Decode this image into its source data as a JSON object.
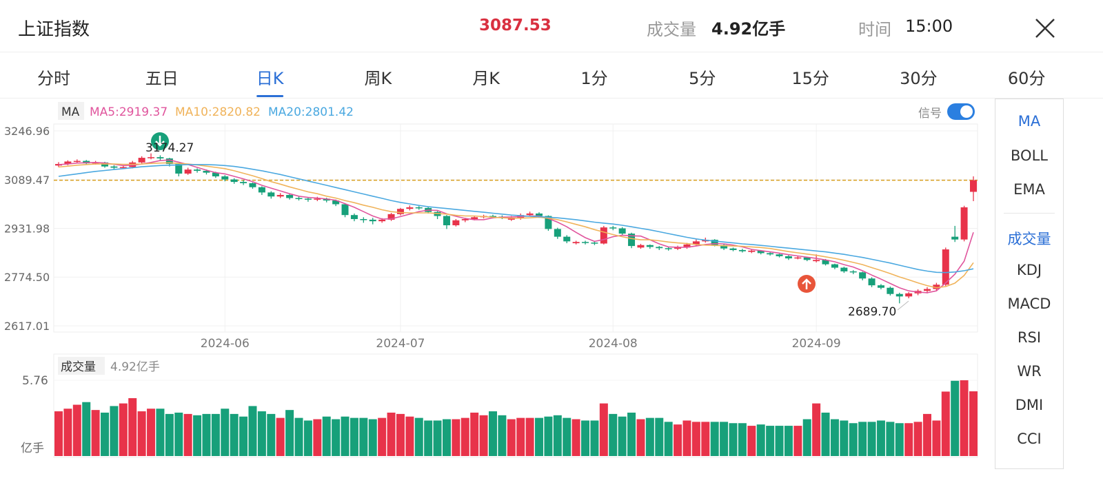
{
  "header": {
    "title": "上证指数",
    "price": "3087.53",
    "volume_label": "成交量",
    "volume_value": "4.92亿手",
    "time_label": "时间",
    "time_value": "15:00"
  },
  "tabs": [
    "分时",
    "五日",
    "日K",
    "周K",
    "月K",
    "1分",
    "5分",
    "15分",
    "30分",
    "60分"
  ],
  "side_menu": [
    "MA",
    "BOLL",
    "EMA",
    "成交量",
    "KDJ",
    "MACD",
    "RSI",
    "WR",
    "DMI",
    "CCI"
  ],
  "chart_data": {
    "type": "candlestick",
    "ma_label": "MA",
    "signal_label": "信号",
    "ylim": [
      2617.01,
      3246.96
    ],
    "yticks": [
      2617.01,
      {
        "value": 2774.5,
        "label": "2774.50"
      },
      2931.98,
      3089.47,
      3246.96
    ],
    "reference_line": 3087.53,
    "annotations": [
      "3174.27",
      "2689.70"
    ],
    "categories": [
      null,
      null,
      null,
      null,
      null,
      null,
      null,
      null,
      null,
      null,
      null,
      null,
      null,
      null,
      null,
      null,
      null,
      null,
      "2024-06",
      null,
      null,
      null,
      null,
      null,
      null,
      null,
      null,
      null,
      null,
      null,
      null,
      null,
      null,
      null,
      null,
      null,
      null,
      "2024-07",
      null,
      null,
      null,
      null,
      null,
      null,
      null,
      null,
      null,
      null,
      null,
      null,
      null,
      null,
      null,
      null,
      null,
      null,
      null,
      null,
      null,
      null,
      "2024-08",
      null,
      null,
      null,
      null,
      null,
      null,
      null,
      null,
      null,
      null,
      null,
      null,
      null,
      null,
      null,
      null,
      null,
      null,
      null,
      null,
      null,
      "2024-09",
      null,
      null,
      null,
      null,
      null,
      null,
      null,
      null,
      null,
      null,
      null,
      null,
      null,
      null,
      null,
      null,
      null
    ],
    "ohlc": [
      [
        3135,
        3146,
        3130,
        3140
      ],
      [
        3140,
        3152,
        3136,
        3148
      ],
      [
        3148,
        3155,
        3142,
        3150
      ],
      [
        3150,
        3153,
        3138,
        3142
      ],
      [
        3142,
        3150,
        3138,
        3145
      ],
      [
        3145,
        3147,
        3128,
        3132
      ],
      [
        3132,
        3136,
        3122,
        3128
      ],
      [
        3128,
        3135,
        3124,
        3130
      ],
      [
        3130,
        3150,
        3126,
        3145
      ],
      [
        3145,
        3165,
        3142,
        3160
      ],
      [
        3160,
        3174.27,
        3155,
        3162
      ],
      [
        3162,
        3168,
        3152,
        3158
      ],
      [
        3158,
        3160,
        3132,
        3140
      ],
      [
        3140,
        3142,
        3100,
        3109
      ],
      [
        3109,
        3128,
        3105,
        3122
      ],
      [
        3122,
        3126,
        3112,
        3118
      ],
      [
        3118,
        3122,
        3106,
        3112
      ],
      [
        3112,
        3115,
        3095,
        3100
      ],
      [
        3100,
        3104,
        3084,
        3090
      ],
      [
        3090,
        3094,
        3076,
        3082
      ],
      [
        3082,
        3088,
        3072,
        3078
      ],
      [
        3078,
        3080,
        3060,
        3065
      ],
      [
        3065,
        3068,
        3040,
        3048
      ],
      [
        3048,
        3052,
        3028,
        3035
      ],
      [
        3035,
        3046,
        3030,
        3040
      ],
      [
        3040,
        3044,
        3025,
        3030
      ],
      [
        3030,
        3036,
        3022,
        3028
      ],
      [
        3028,
        3032,
        3018,
        3025
      ],
      [
        3025,
        3034,
        3020,
        3028
      ],
      [
        3028,
        3031,
        3016,
        3022
      ],
      [
        3022,
        3025,
        3004,
        3010
      ],
      [
        3010,
        3012,
        2968,
        2975
      ],
      [
        2975,
        2980,
        2955,
        2962
      ],
      [
        2962,
        2968,
        2950,
        2960
      ],
      [
        2960,
        2966,
        2945,
        2955
      ],
      [
        2955,
        2965,
        2950,
        2960
      ],
      [
        2960,
        2982,
        2956,
        2978
      ],
      [
        2978,
        2998,
        2974,
        2995
      ],
      [
        2995,
        3006,
        2990,
        3000
      ],
      [
        3000,
        3004,
        2992,
        2998
      ],
      [
        2998,
        3001,
        2980,
        2985
      ],
      [
        2985,
        2988,
        2962,
        2972
      ],
      [
        2972,
        2975,
        2930,
        2942
      ],
      [
        2942,
        2962,
        2938,
        2958
      ],
      [
        2958,
        2966,
        2952,
        2962
      ],
      [
        2962,
        2972,
        2958,
        2968
      ],
      [
        2968,
        2976,
        2964,
        2972
      ],
      [
        2972,
        2976,
        2964,
        2970
      ],
      [
        2970,
        2974,
        2962,
        2968
      ],
      [
        2960,
        2972,
        2956,
        2965
      ],
      [
        2965,
        2980,
        2960,
        2975
      ],
      [
        2975,
        2986,
        2970,
        2980
      ],
      [
        2980,
        2984,
        2966,
        2972
      ],
      [
        2972,
        2974,
        2924,
        2930
      ],
      [
        2930,
        2934,
        2898,
        2905
      ],
      [
        2905,
        2910,
        2884,
        2890
      ],
      [
        2884,
        2892,
        2880,
        2888
      ],
      [
        2888,
        2892,
        2880,
        2886
      ],
      [
        2886,
        2890,
        2878,
        2883
      ],
      [
        2883,
        2940,
        2880,
        2935
      ],
      [
        2935,
        2940,
        2926,
        2932
      ],
      [
        2932,
        2936,
        2910,
        2915
      ],
      [
        2915,
        2918,
        2868,
        2875
      ],
      [
        2870,
        2882,
        2866,
        2878
      ],
      [
        2878,
        2880,
        2866,
        2872
      ],
      [
        2872,
        2875,
        2862,
        2868
      ],
      [
        2868,
        2872,
        2860,
        2866
      ],
      [
        2866,
        2876,
        2862,
        2870
      ],
      [
        2870,
        2885,
        2866,
        2880
      ],
      [
        2880,
        2896,
        2876,
        2890
      ],
      [
        2890,
        2902,
        2886,
        2895
      ],
      [
        2895,
        2897,
        2874,
        2878
      ],
      [
        2878,
        2881,
        2862,
        2867
      ],
      [
        2867,
        2870,
        2858,
        2862
      ],
      [
        2862,
        2866,
        2854,
        2858
      ],
      [
        2856,
        2864,
        2852,
        2860
      ],
      [
        2860,
        2862,
        2848,
        2852
      ],
      [
        2852,
        2856,
        2844,
        2848
      ],
      [
        2848,
        2850,
        2838,
        2842
      ],
      [
        2842,
        2845,
        2830,
        2835
      ],
      [
        2835,
        2842,
        2832,
        2838
      ],
      [
        2838,
        2840,
        2826,
        2830
      ],
      [
        2826,
        2848,
        2822,
        2830
      ],
      [
        2830,
        2833,
        2812,
        2816
      ],
      [
        2816,
        2818,
        2800,
        2805
      ],
      [
        2805,
        2808,
        2788,
        2793
      ],
      [
        2793,
        2797,
        2784,
        2790
      ],
      [
        2790,
        2792,
        2764,
        2770
      ],
      [
        2770,
        2774,
        2742,
        2748
      ],
      [
        2748,
        2752,
        2735,
        2740
      ],
      [
        2740,
        2744,
        2715,
        2720
      ],
      [
        2720,
        2724,
        2689.7,
        2712
      ],
      [
        2712,
        2726,
        2706,
        2722
      ],
      [
        2722,
        2735,
        2716,
        2730
      ],
      [
        2730,
        2742,
        2722,
        2736
      ],
      [
        2736,
        2756,
        2730,
        2750
      ],
      [
        2750,
        2870,
        2746,
        2864
      ],
      [
        2905,
        2940,
        2888,
        2896
      ],
      [
        2896,
        3005,
        2890,
        3000
      ],
      [
        3050,
        3100,
        3020,
        3087.53
      ]
    ],
    "series": [
      {
        "name": "MA5:2919.37",
        "color": "#e0559d",
        "values": [
          3138,
          3140,
          3143,
          3144,
          3145,
          3143,
          3139,
          3135,
          3136,
          3140,
          3145,
          3151,
          3153,
          3146,
          3138,
          3129,
          3120,
          3112,
          3108,
          3100,
          3092,
          3083,
          3071,
          3062,
          3053,
          3044,
          3036,
          3032,
          3030,
          3027,
          3023,
          3012,
          3000,
          2986,
          2972,
          2962,
          2963,
          2970,
          2978,
          2986,
          2991,
          2990,
          2979,
          2971,
          2964,
          2960,
          2960,
          2966,
          2968,
          2969,
          2970,
          2972,
          2972,
          2964,
          2952,
          2937,
          2919,
          2902,
          2890,
          2896,
          2905,
          2910,
          2908,
          2907,
          2895,
          2882,
          2872,
          2871,
          2871,
          2875,
          2880,
          2883,
          2882,
          2878,
          2872,
          2864,
          2860,
          2856,
          2852,
          2847,
          2843,
          2839,
          2835,
          2830,
          2824,
          2815,
          2807,
          2795,
          2781,
          2768,
          2754,
          2740,
          2730,
          2726,
          2724,
          2730,
          2756,
          2784,
          2826,
          2919.37
        ]
      },
      {
        "name": "MA10:2820.82",
        "color": "#f0b35a",
        "values": [
          3130,
          3133,
          3136,
          3138,
          3140,
          3140,
          3140,
          3139,
          3139,
          3140,
          3142,
          3143,
          3144,
          3142,
          3140,
          3137,
          3133,
          3129,
          3125,
          3118,
          3110,
          3102,
          3093,
          3083,
          3075,
          3066,
          3058,
          3050,
          3044,
          3036,
          3030,
          3022,
          3015,
          3007,
          3000,
          2992,
          2986,
          2983,
          2982,
          2982,
          2982,
          2980,
          2978,
          2974,
          2972,
          2972,
          2970,
          2968,
          2966,
          2965,
          2965,
          2966,
          2968,
          2965,
          2960,
          2953,
          2945,
          2937,
          2928,
          2920,
          2912,
          2905,
          2899,
          2895,
          2895,
          2892,
          2888,
          2885,
          2883,
          2880,
          2878,
          2877,
          2876,
          2875,
          2874,
          2872,
          2870,
          2867,
          2862,
          2857,
          2853,
          2849,
          2845,
          2840,
          2835,
          2829,
          2822,
          2815,
          2805,
          2796,
          2786,
          2775,
          2766,
          2756,
          2747,
          2740,
          2744,
          2755,
          2780,
          2820.82
        ]
      },
      {
        "name": "MA20:2801.42",
        "color": "#4aa8e0",
        "values": [
          3100,
          3104,
          3108,
          3112,
          3116,
          3119,
          3122,
          3125,
          3128,
          3131,
          3133,
          3135,
          3136,
          3137,
          3138,
          3138,
          3138,
          3137,
          3135,
          3132,
          3128,
          3123,
          3118,
          3112,
          3106,
          3099,
          3092,
          3085,
          3078,
          3071,
          3064,
          3057,
          3050,
          3043,
          3036,
          3029,
          3022,
          3016,
          3011,
          3006,
          3002,
          2999,
          2996,
          2993,
          2990,
          2987,
          2984,
          2981,
          2978,
          2975,
          2973,
          2971,
          2970,
          2968,
          2966,
          2963,
          2960,
          2956,
          2952,
          2949,
          2946,
          2942,
          2937,
          2932,
          2927,
          2921,
          2915,
          2909,
          2903,
          2898,
          2894,
          2891,
          2888,
          2885,
          2882,
          2880,
          2877,
          2874,
          2871,
          2868,
          2865,
          2862,
          2859,
          2856,
          2852,
          2848,
          2843,
          2838,
          2832,
          2826,
          2820,
          2813,
          2806,
          2799,
          2794,
          2790,
          2789,
          2791,
          2795,
          2801.42
        ]
      }
    ],
    "up_color": "#e8334a",
    "down_color": "#17a07a",
    "volume": {
      "title": "成交量",
      "value_text": "4.92亿手",
      "unit": "亿手",
      "ylim": [
        0,
        5.76
      ],
      "yticks": [
        5.76
      ],
      "values": [
        3.4,
        3.6,
        3.9,
        4.1,
        3.5,
        3.3,
        3.8,
        4.0,
        4.4,
        3.4,
        3.6,
        3.6,
        3.2,
        3.3,
        3.2,
        3.1,
        3.2,
        3.2,
        3.6,
        3.2,
        3.0,
        3.8,
        3.4,
        3.2,
        2.9,
        3.5,
        2.9,
        2.7,
        2.8,
        3.0,
        2.8,
        3.0,
        2.9,
        2.9,
        2.8,
        2.9,
        3.3,
        3.2,
        3.0,
        2.9,
        2.7,
        2.7,
        2.8,
        2.8,
        2.9,
        3.3,
        3.1,
        3.4,
        3.1,
        2.8,
        2.9,
        2.9,
        2.9,
        3.0,
        3.1,
        2.9,
        2.8,
        2.7,
        2.7,
        4.0,
        3.2,
        3.0,
        3.3,
        2.8,
        2.9,
        2.9,
        2.6,
        2.4,
        2.7,
        2.6,
        2.6,
        2.6,
        2.6,
        2.5,
        2.5,
        2.3,
        2.4,
        2.3,
        2.3,
        2.3,
        2.3,
        2.8,
        4.0,
        3.3,
        2.8,
        2.7,
        2.5,
        2.6,
        2.6,
        2.7,
        2.6,
        2.5,
        2.5,
        2.6,
        3.2,
        2.7,
        4.9,
        5.72,
        5.76,
        4.92
      ]
    }
  }
}
